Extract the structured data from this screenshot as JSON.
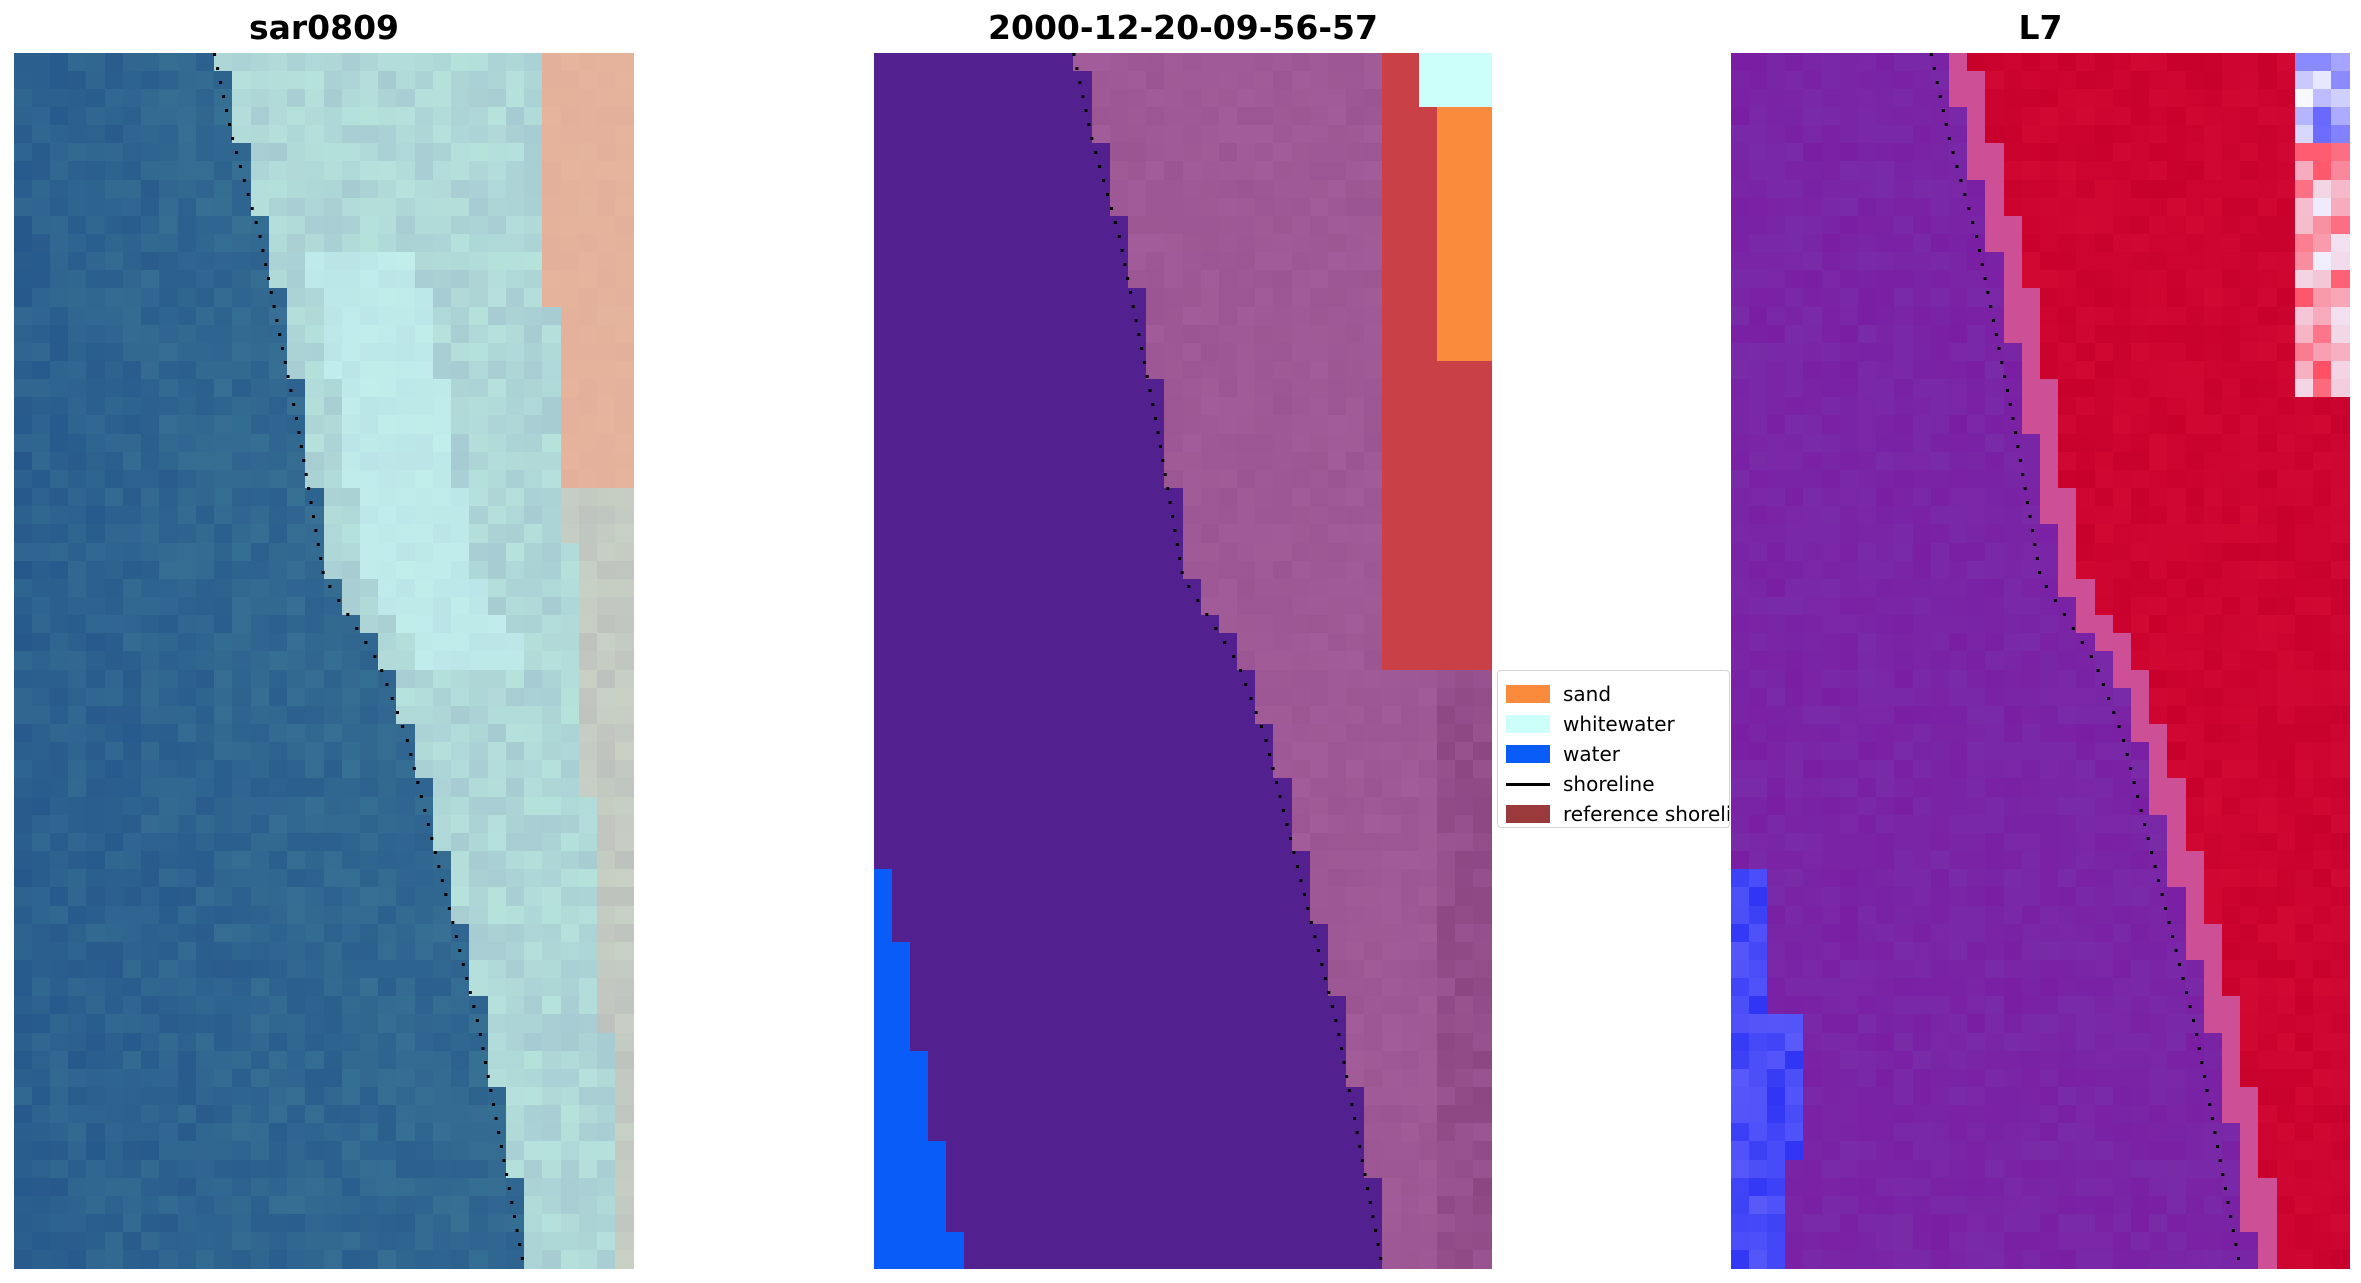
{
  "panels": [
    {
      "title": "sar0809"
    },
    {
      "title": "2000-12-20-09-56-57"
    },
    {
      "title": "L7"
    }
  ],
  "legend": {
    "items": [
      {
        "label": "sand",
        "color": "#fb8b3c",
        "kind": "patch"
      },
      {
        "label": "whitewater",
        "color": "#ccfff9",
        "kind": "patch"
      },
      {
        "label": "water",
        "color": "#0a5cf9",
        "kind": "patch"
      },
      {
        "label": "shoreline",
        "color": "#000000",
        "kind": "line"
      },
      {
        "label": "reference shoreline",
        "color": "#9a3a3a",
        "kind": "patch"
      }
    ]
  },
  "colors": {
    "rgb_water": "#2a6096",
    "rgb_surf": "#b6e2dc",
    "rgb_beach": "#f2a98d",
    "class_background": "#52218f",
    "class_whitewater_tint": "#9a5592",
    "class_sand": "#fb8b3c",
    "class_whitewater": "#ccfff9",
    "class_water": "#0a5cf9",
    "class_reference": "#c94146",
    "ndwi_low": "#7a1fa4",
    "ndwi_high": "#c8002c",
    "ndwi_blue": "#2f35f4"
  }
}
